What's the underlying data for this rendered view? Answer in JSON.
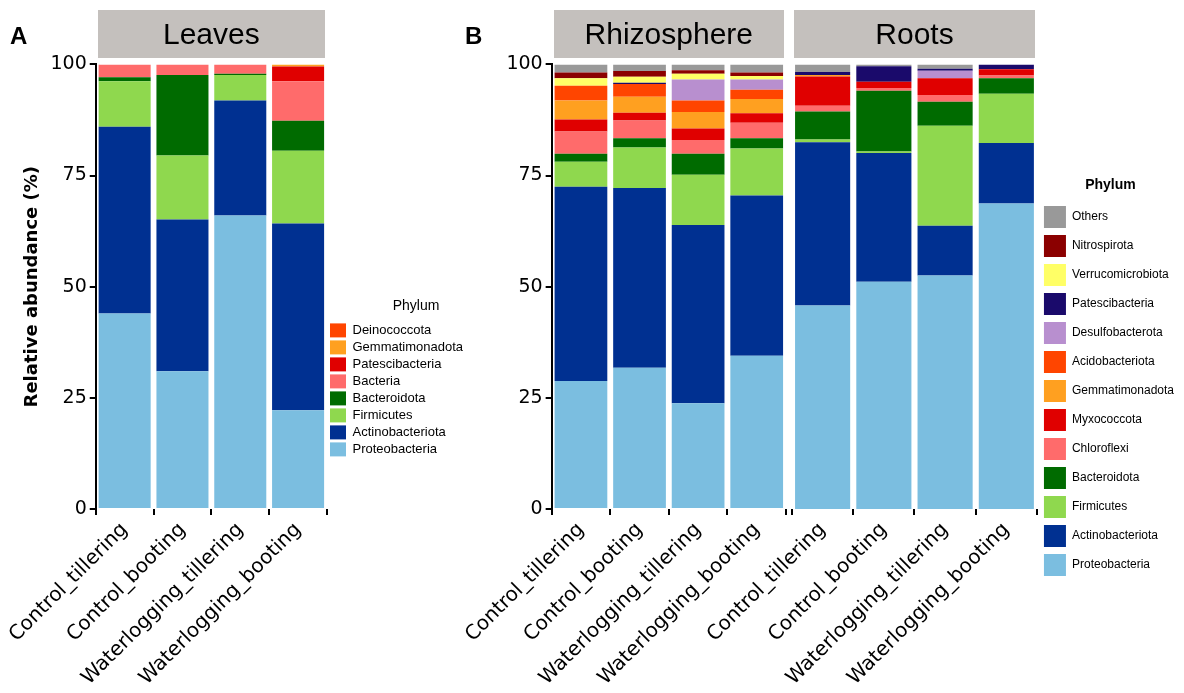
{
  "chart_data": [
    {
      "type": "bar",
      "title": "Leaves",
      "ylabel": "Relative abundance (%)",
      "annotations": [
        "A"
      ],
      "categories": [
        "Control_tillering",
        "Control_booting",
        "Waterlogging_tillering",
        "Waterlogging_booting"
      ],
      "stacked": true,
      "ylim": [
        0,
        100
      ],
      "yticks": [
        0,
        25,
        50,
        75,
        100
      ],
      "legend": "right",
      "legend_title": "Phylum",
      "series": [
        {
          "name": "Proteobacteria",
          "color": "#7bbee0",
          "values": [
            44,
            31,
            66,
            22.2
          ]
        },
        {
          "name": "Actinobacteriota",
          "color": "#003091",
          "values": [
            42,
            34.1,
            25.9,
            42
          ]
        },
        {
          "name": "Firmicutes",
          "color": "#8fd84e",
          "values": [
            10.2,
            14.4,
            5.7,
            16.4
          ]
        },
        {
          "name": "Bacteroidota",
          "color": "#006b00",
          "values": [
            0.9,
            18.1,
            0.3,
            6.7
          ]
        },
        {
          "name": "Bacteria",
          "color": "#ff6b6b",
          "values": [
            2.9,
            2.4,
            2.1,
            8.9
          ]
        },
        {
          "name": "Patescibacteria",
          "color": "#e00000",
          "values": [
            0,
            0,
            0,
            3.3
          ]
        },
        {
          "name": "Gemmatimonadota",
          "color": "#ffa020",
          "values": [
            0,
            0,
            0,
            0.5
          ]
        },
        {
          "name": "Deinococcota",
          "color": "#ff4500",
          "values": [
            0,
            0,
            0,
            null
          ]
        }
      ]
    },
    {
      "type": "bar",
      "title": "Rhizosphere",
      "annotations": [
        "B"
      ],
      "categories": [
        "Control_tillering",
        "Control_booting",
        "Waterlogging_tillering",
        "Waterlogging_booting"
      ],
      "stacked": true,
      "ylim": [
        0,
        100
      ],
      "yticks": [
        0,
        25,
        50,
        75,
        100
      ],
      "series": [
        {
          "color": "#7bbee0",
          "values": [
            28.8,
            31.8,
            23.8,
            34.5
          ]
        },
        {
          "color": "#003091",
          "values": [
            43.7,
            40.4,
            40.1,
            36
          ]
        },
        {
          "color": "#8fd84e",
          "values": [
            5.6,
            9.1,
            11.3,
            10.6
          ]
        },
        {
          "color": "#006b00",
          "values": [
            1.8,
            2.1,
            4.7,
            2.3
          ]
        },
        {
          "color": "#ff6b6b",
          "values": [
            5,
            4,
            3.1,
            3.5
          ]
        },
        {
          "color": "#e00000",
          "values": [
            2.7,
            1.7,
            2.6,
            2.1
          ]
        },
        {
          "color": "#ffa020",
          "values": [
            4.3,
            3.6,
            3.7,
            3.2
          ]
        },
        {
          "color": "#ff4500",
          "values": [
            3.3,
            2.9,
            2.6,
            2.1
          ]
        },
        {
          "color": "#b88fcf",
          "values": [
            0,
            0,
            4.7,
            2.3
          ]
        },
        {
          "color": "#1a0a6b",
          "values": [
            0,
            0.3,
            0,
            0
          ]
        },
        {
          "color": "#ffff66",
          "values": [
            1.7,
            1.3,
            1.3,
            0.8
          ]
        },
        {
          "color": "#8b0000",
          "values": [
            1.3,
            1.3,
            0.8,
            0.8
          ]
        },
        {
          "color": "#999999",
          "values": [
            1.8,
            1.5,
            1.3,
            1.8
          ]
        }
      ]
    },
    {
      "type": "bar",
      "title": "Roots",
      "categories": [
        "Control_tillering",
        "Control_booting",
        "Waterlogging_tillering",
        "Waterlogging_booting"
      ],
      "stacked": true,
      "ylim": [
        0,
        100
      ],
      "yticks": [
        0,
        25,
        50,
        75,
        100
      ],
      "tick_labels": "x",
      "legend": "right",
      "legend_title": "Phylum",
      "series": [
        {
          "name": "Proteobacteria",
          "color": "#7bbee0",
          "values": [
            45.8,
            51.1,
            52.5,
            68.7
          ]
        },
        {
          "name": "Actinobacteriota",
          "color": "#003091",
          "values": [
            36.7,
            29,
            11.2,
            13.6
          ]
        },
        {
          "name": "Firmicutes",
          "color": "#8fd84e",
          "values": [
            0.6,
            0.3,
            22.5,
            11.1
          ]
        },
        {
          "name": "Bacteroidota",
          "color": "#006b00",
          "values": [
            6.3,
            13.7,
            5.4,
            3.5
          ]
        },
        {
          "name": "Chloroflexi",
          "color": "#ff6b6b",
          "values": [
            1.3,
            0.6,
            1.5,
            0.6
          ]
        },
        {
          "name": "Myxococcota",
          "color": "#e00000",
          "values": [
            6.6,
            1.4,
            3.8,
            1.4
          ]
        },
        {
          "name": "Gemmatimonadota",
          "color": "#ffa020",
          "values": [
            0.3,
            0,
            0,
            0
          ]
        },
        {
          "name": "Acidobacteriota",
          "color": "#ff4500",
          "values": [
            0,
            0,
            0,
            0
          ]
        },
        {
          "name": "Desulfobacterota",
          "color": "#b88fcf",
          "values": [
            0,
            0,
            1.7,
            0
          ]
        },
        {
          "name": "Patescibacteria",
          "color": "#1a0a6b",
          "values": [
            0.7,
            3.5,
            0.4,
            1.1
          ]
        },
        {
          "name": "Verrucomicrobiota",
          "color": "#ffff66",
          "values": [
            0,
            0,
            0,
            0
          ]
        },
        {
          "name": "Nitrospirota",
          "color": "#8b0000",
          "values": [
            0,
            0,
            0,
            0
          ]
        },
        {
          "name": "Others",
          "color": "#999999",
          "values": [
            1.7,
            0.4,
            1,
            0
          ]
        }
      ]
    }
  ]
}
